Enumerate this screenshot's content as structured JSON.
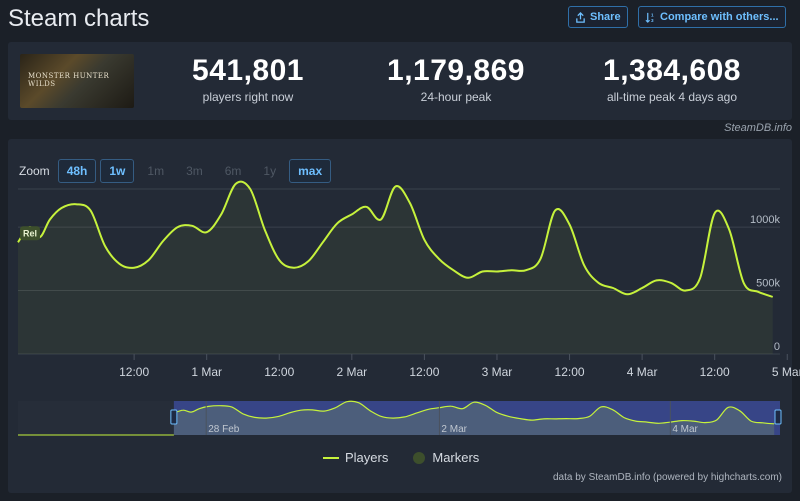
{
  "header": {
    "title": "Steam charts",
    "share_label": "Share",
    "compare_label": "Compare with others..."
  },
  "game": {
    "cover_text": "MONSTER HUNTER WILDS"
  },
  "stats": [
    {
      "value": "541,801",
      "label": "players right now"
    },
    {
      "value": "1,179,869",
      "label": "24-hour peak"
    },
    {
      "value": "1,384,608",
      "label": "all-time peak 4 days ago"
    }
  ],
  "credits": {
    "steamdb": "SteamDB.info",
    "footer": "data by SteamDB.info (powered by highcharts.com)"
  },
  "zoom": {
    "label": "Zoom",
    "options": [
      {
        "label": "48h",
        "active": true
      },
      {
        "label": "1w",
        "active": true
      },
      {
        "label": "1m",
        "active": false
      },
      {
        "label": "3m",
        "active": false
      },
      {
        "label": "6m",
        "active": false
      },
      {
        "label": "1y",
        "active": false
      },
      {
        "label": "max",
        "active": true
      }
    ]
  },
  "colors": {
    "line": "#c6f23c",
    "marker": "#3d4f2c",
    "accent": "#6ebfff"
  },
  "chart_data": {
    "type": "line",
    "title": "",
    "xlabel": "",
    "ylabel": "",
    "ylim": [
      0,
      1300000
    ],
    "y_ticks": [
      0,
      500000,
      1000000
    ],
    "y_tick_labels": [
      "0",
      "500k",
      "1000k"
    ],
    "x_tick_labels": [
      "12:00",
      "1 Mar",
      "12:00",
      "2 Mar",
      "12:00",
      "3 Mar",
      "12:00",
      "4 Mar",
      "12:00",
      "5 Mar"
    ],
    "x_range_days": [
      -0.3,
      4.95
    ],
    "x_tick_days": [
      0.5,
      1,
      1.5,
      2,
      2.5,
      3,
      3.5,
      4,
      4.5,
      5
    ],
    "marker_label": "Rel",
    "legend": [
      {
        "name": "Players",
        "kind": "line"
      },
      {
        "name": "Markers",
        "kind": "marker"
      }
    ],
    "legend_position": "bottom",
    "navigator_labels": [
      "28 Feb",
      "2 Mar",
      "4 Mar"
    ],
    "series": [
      {
        "name": "Players",
        "x_days": [
          -0.3,
          -0.22,
          -0.15,
          -0.08,
          0,
          0.1,
          0.2,
          0.3,
          0.4,
          0.5,
          0.6,
          0.7,
          0.8,
          0.9,
          1.0,
          1.1,
          1.2,
          1.3,
          1.4,
          1.5,
          1.6,
          1.7,
          1.8,
          1.9,
          2.0,
          2.1,
          2.2,
          2.3,
          2.4,
          2.5,
          2.6,
          2.7,
          2.8,
          2.9,
          3.0,
          3.1,
          3.2,
          3.3,
          3.4,
          3.5,
          3.6,
          3.7,
          3.8,
          3.9,
          4.0,
          4.1,
          4.2,
          4.3,
          4.4,
          4.5,
          4.6,
          4.7,
          4.8,
          4.9
        ],
        "values": [
          880000,
          1000000,
          920000,
          1060000,
          1150000,
          1180000,
          1130000,
          850000,
          710000,
          680000,
          740000,
          890000,
          1000000,
          1010000,
          960000,
          1100000,
          1340000,
          1300000,
          980000,
          740000,
          680000,
          730000,
          880000,
          1030000,
          1100000,
          1160000,
          1060000,
          1320000,
          1190000,
          900000,
          750000,
          660000,
          600000,
          650000,
          650000,
          660000,
          660000,
          750000,
          1130000,
          1020000,
          700000,
          560000,
          520000,
          470000,
          520000,
          580000,
          560000,
          500000,
          600000,
          1110000,
          980000,
          560000,
          490000,
          450000
        ]
      }
    ]
  }
}
